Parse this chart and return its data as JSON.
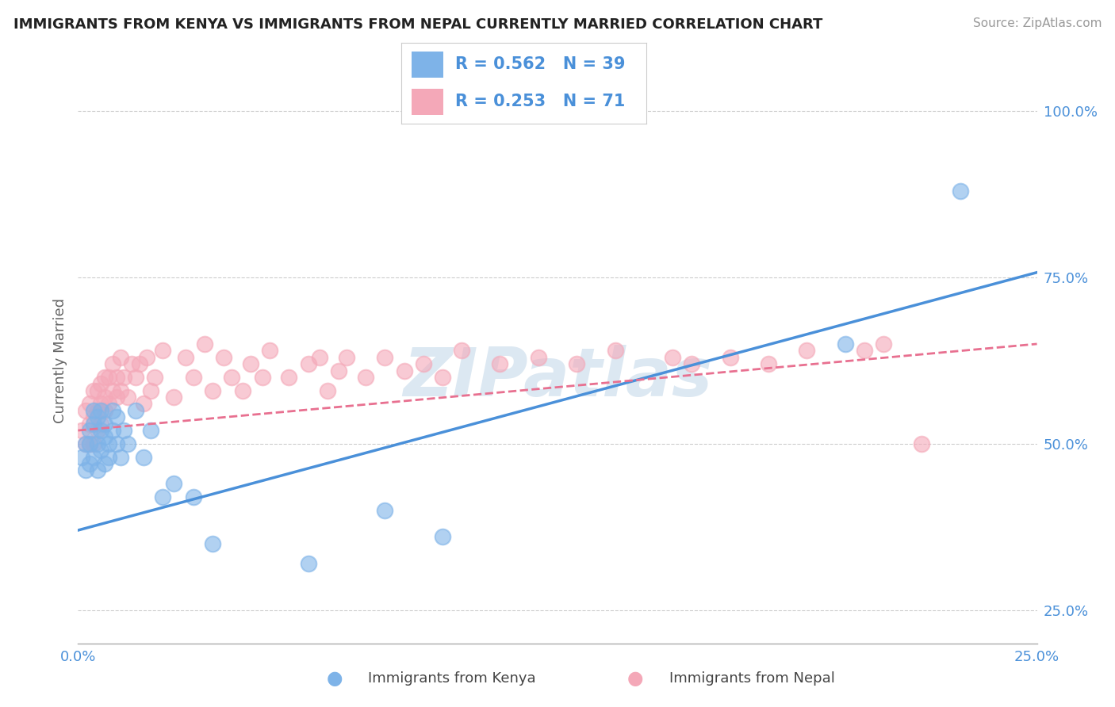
{
  "title": "IMMIGRANTS FROM KENYA VS IMMIGRANTS FROM NEPAL CURRENTLY MARRIED CORRELATION CHART",
  "source": "Source: ZipAtlas.com",
  "ylabel": "Currently Married",
  "xlim": [
    0.0,
    0.25
  ],
  "ylim": [
    0.2,
    1.05
  ],
  "xtick_vals": [
    0.0,
    0.05,
    0.1,
    0.15,
    0.2,
    0.25
  ],
  "xtick_labels": [
    "0.0%",
    "",
    "",
    "",
    "",
    "25.0%"
  ],
  "ytick_vals": [
    0.25,
    0.5,
    0.75,
    1.0
  ],
  "ytick_labels": [
    "25.0%",
    "50.0%",
    "75.0%",
    "100.0%"
  ],
  "kenya_color": "#7EB3E8",
  "nepal_color": "#F4A8B8",
  "kenya_line_color": "#4a90d9",
  "nepal_line_color": "#e87090",
  "kenya_R": 0.562,
  "kenya_N": 39,
  "nepal_R": 0.253,
  "nepal_N": 71,
  "kenya_x": [
    0.001,
    0.002,
    0.002,
    0.003,
    0.003,
    0.003,
    0.004,
    0.004,
    0.004,
    0.005,
    0.005,
    0.005,
    0.006,
    0.006,
    0.006,
    0.007,
    0.007,
    0.007,
    0.008,
    0.008,
    0.009,
    0.009,
    0.01,
    0.01,
    0.011,
    0.012,
    0.013,
    0.015,
    0.017,
    0.019,
    0.022,
    0.025,
    0.03,
    0.035,
    0.06,
    0.08,
    0.095,
    0.2,
    0.23
  ],
  "kenya_y": [
    0.48,
    0.5,
    0.46,
    0.52,
    0.47,
    0.5,
    0.55,
    0.48,
    0.53,
    0.5,
    0.46,
    0.54,
    0.49,
    0.52,
    0.55,
    0.51,
    0.47,
    0.53,
    0.5,
    0.48,
    0.55,
    0.52,
    0.5,
    0.54,
    0.48,
    0.52,
    0.5,
    0.55,
    0.48,
    0.52,
    0.42,
    0.44,
    0.42,
    0.35,
    0.32,
    0.4,
    0.36,
    0.65,
    0.88
  ],
  "nepal_x": [
    0.001,
    0.002,
    0.002,
    0.003,
    0.003,
    0.003,
    0.004,
    0.004,
    0.004,
    0.005,
    0.005,
    0.005,
    0.006,
    0.006,
    0.006,
    0.007,
    0.007,
    0.007,
    0.008,
    0.008,
    0.009,
    0.009,
    0.01,
    0.01,
    0.011,
    0.011,
    0.012,
    0.013,
    0.014,
    0.015,
    0.016,
    0.017,
    0.018,
    0.019,
    0.02,
    0.022,
    0.025,
    0.028,
    0.03,
    0.033,
    0.035,
    0.038,
    0.04,
    0.043,
    0.045,
    0.048,
    0.05,
    0.055,
    0.06,
    0.063,
    0.065,
    0.068,
    0.07,
    0.075,
    0.08,
    0.085,
    0.09,
    0.095,
    0.1,
    0.11,
    0.12,
    0.13,
    0.14,
    0.155,
    0.16,
    0.17,
    0.18,
    0.19,
    0.205,
    0.21,
    0.22
  ],
  "nepal_y": [
    0.52,
    0.5,
    0.55,
    0.53,
    0.5,
    0.56,
    0.54,
    0.5,
    0.58,
    0.55,
    0.52,
    0.58,
    0.53,
    0.56,
    0.59,
    0.55,
    0.6,
    0.57,
    0.56,
    0.6,
    0.58,
    0.62,
    0.57,
    0.6,
    0.63,
    0.58,
    0.6,
    0.57,
    0.62,
    0.6,
    0.62,
    0.56,
    0.63,
    0.58,
    0.6,
    0.64,
    0.57,
    0.63,
    0.6,
    0.65,
    0.58,
    0.63,
    0.6,
    0.58,
    0.62,
    0.6,
    0.64,
    0.6,
    0.62,
    0.63,
    0.58,
    0.61,
    0.63,
    0.6,
    0.63,
    0.61,
    0.62,
    0.6,
    0.64,
    0.62,
    0.63,
    0.62,
    0.64,
    0.63,
    0.62,
    0.63,
    0.62,
    0.64,
    0.64,
    0.65,
    0.5
  ],
  "background_color": "#ffffff",
  "grid_color": "#cccccc",
  "title_color": "#222222",
  "source_color": "#999999",
  "axis_label_color": "#4a90d9",
  "legend_text_color": "#4a90d9",
  "watermark_text": "ZIPatlas",
  "watermark_color": "#dce8f2",
  "bottom_legend": [
    {
      "label": "Immigrants from Kenya",
      "color": "#7EB3E8"
    },
    {
      "label": "Immigrants from Nepal",
      "color": "#F4A8B8"
    }
  ]
}
